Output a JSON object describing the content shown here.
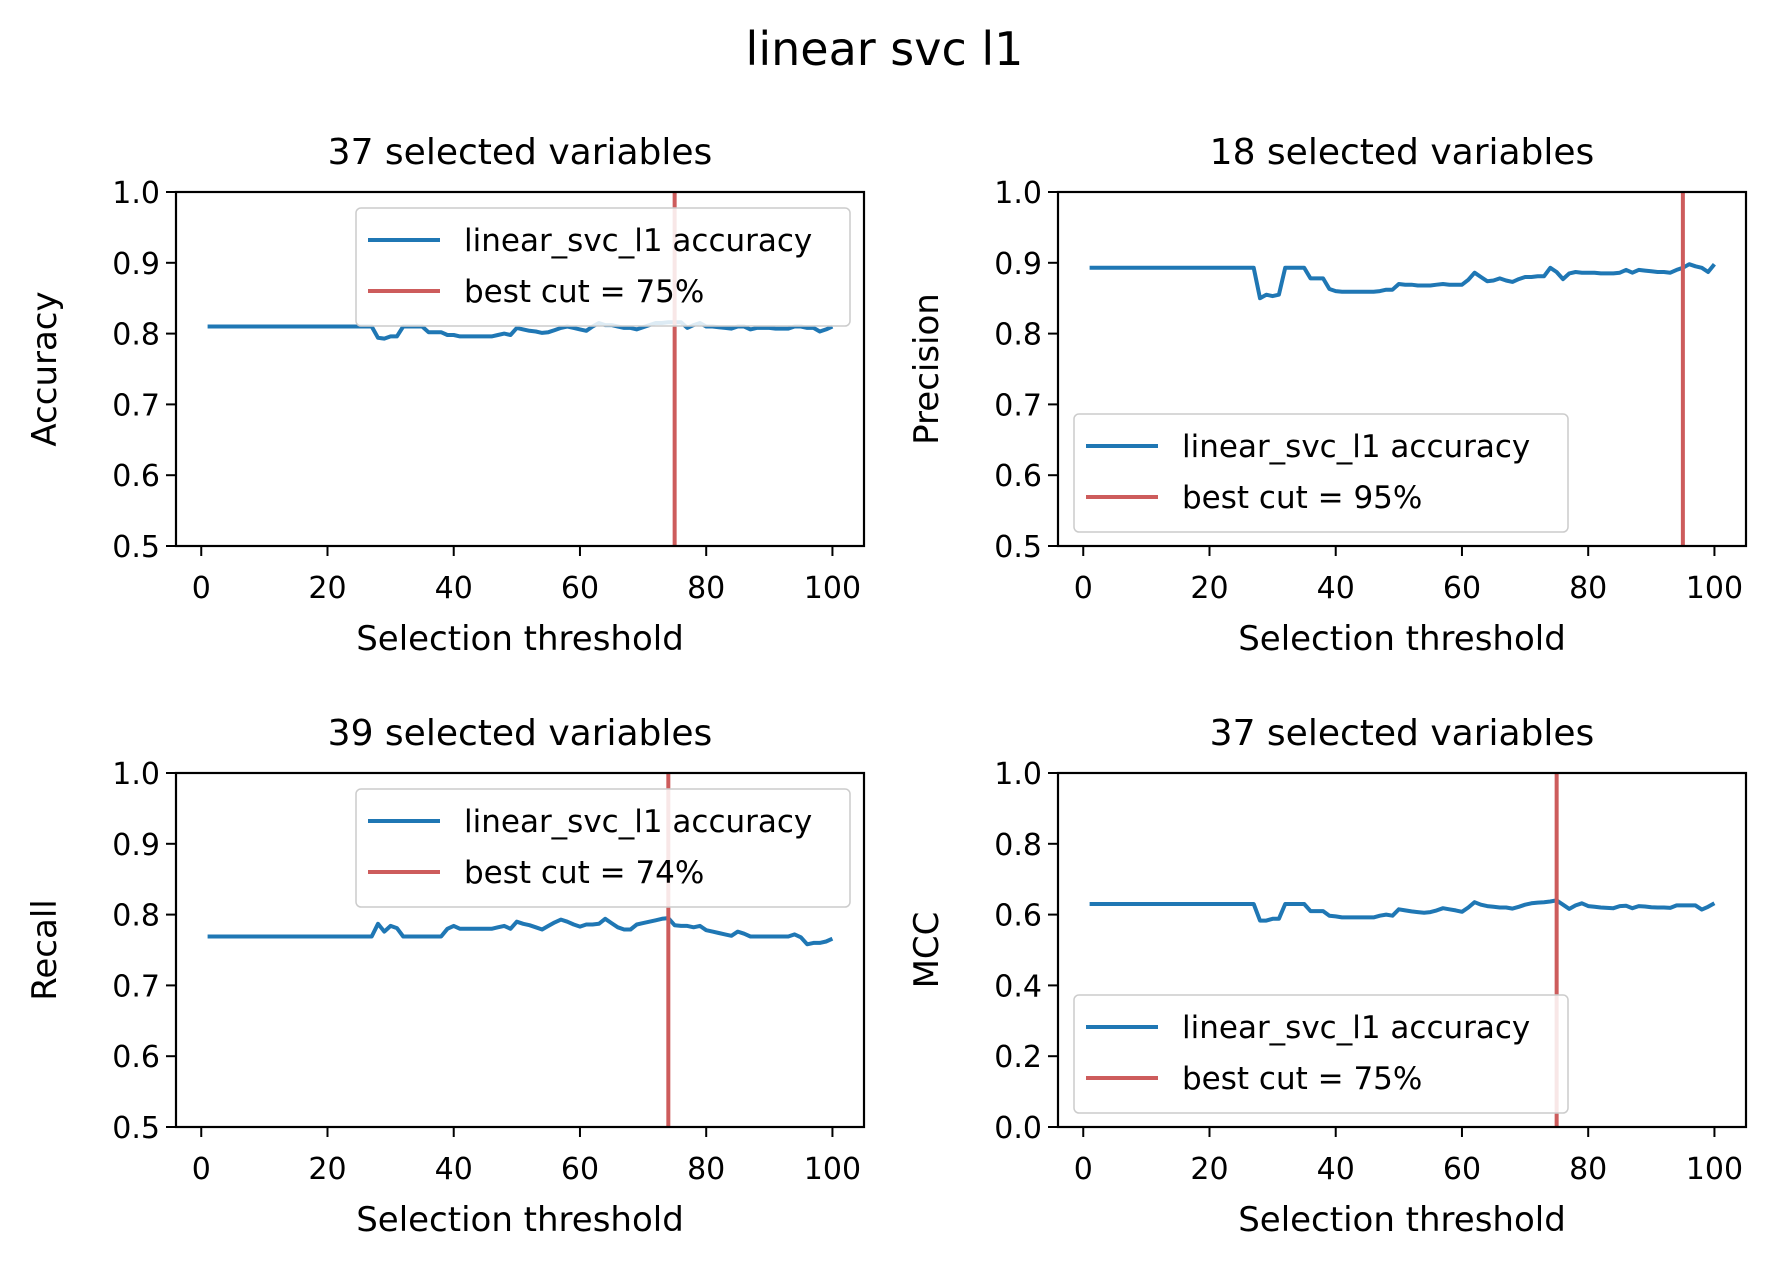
{
  "suptitle": "linear svc l1",
  "colors": {
    "line": "#1f77b4",
    "cut": "#cd5c5c"
  },
  "chart_data": [
    {
      "type": "line",
      "title": "37 selected variables",
      "xlabel": "Selection threshold",
      "ylabel": "Accuracy",
      "xlim": [
        -4,
        105
      ],
      "ylim": [
        0.5,
        1.0
      ],
      "xticks": [
        0,
        20,
        40,
        60,
        80,
        100
      ],
      "yticks": [
        0.5,
        0.6,
        0.7,
        0.8,
        0.9,
        1.0
      ],
      "legend_position": "upper right",
      "series": [
        {
          "name": "linear_svc_l1 accuracy",
          "x": [
            1,
            5,
            10,
            15,
            20,
            25,
            27,
            28,
            29,
            30,
            31,
            32,
            33,
            34,
            35,
            36,
            37,
            38,
            39,
            40,
            41,
            42,
            43,
            44,
            45,
            46,
            47,
            48,
            49,
            50,
            51,
            52,
            53,
            54,
            55,
            56,
            57,
            58,
            59,
            60,
            61,
            62,
            63,
            64,
            65,
            66,
            67,
            68,
            69,
            70,
            71,
            72,
            73,
            74,
            75,
            76,
            77,
            78,
            79,
            80,
            81,
            82,
            83,
            84,
            85,
            86,
            87,
            88,
            89,
            90,
            91,
            92,
            93,
            94,
            95,
            96,
            97,
            98,
            99,
            100
          ],
          "y": [
            0.81,
            0.81,
            0.81,
            0.81,
            0.81,
            0.81,
            0.81,
            0.794,
            0.793,
            0.796,
            0.796,
            0.81,
            0.81,
            0.81,
            0.81,
            0.802,
            0.802,
            0.802,
            0.798,
            0.798,
            0.796,
            0.796,
            0.796,
            0.796,
            0.796,
            0.796,
            0.798,
            0.8,
            0.798,
            0.808,
            0.806,
            0.804,
            0.803,
            0.801,
            0.802,
            0.805,
            0.808,
            0.81,
            0.808,
            0.806,
            0.804,
            0.81,
            0.815,
            0.812,
            0.812,
            0.81,
            0.808,
            0.808,
            0.806,
            0.809,
            0.812,
            0.815,
            0.815,
            0.816,
            0.816,
            0.816,
            0.808,
            0.812,
            0.815,
            0.81,
            0.81,
            0.809,
            0.808,
            0.807,
            0.81,
            0.81,
            0.806,
            0.808,
            0.808,
            0.808,
            0.807,
            0.807,
            0.807,
            0.81,
            0.81,
            0.808,
            0.808,
            0.803,
            0.806,
            0.81
          ]
        }
      ],
      "vline": {
        "x": 75,
        "label": "best cut = 75%"
      }
    },
    {
      "type": "line",
      "title": "18 selected variables",
      "xlabel": "Selection threshold",
      "ylabel": "Precision",
      "xlim": [
        -4,
        105
      ],
      "ylim": [
        0.5,
        1.0
      ],
      "xticks": [
        0,
        20,
        40,
        60,
        80,
        100
      ],
      "yticks": [
        0.5,
        0.6,
        0.7,
        0.8,
        0.9,
        1.0
      ],
      "legend_position": "lower left",
      "series": [
        {
          "name": "linear_svc_l1 accuracy",
          "x": [
            1,
            5,
            10,
            15,
            20,
            25,
            27,
            28,
            29,
            30,
            31,
            32,
            33,
            34,
            35,
            36,
            37,
            38,
            39,
            40,
            41,
            42,
            43,
            44,
            45,
            46,
            47,
            48,
            49,
            50,
            51,
            52,
            53,
            54,
            55,
            56,
            57,
            58,
            59,
            60,
            61,
            62,
            63,
            64,
            65,
            66,
            67,
            68,
            69,
            70,
            71,
            72,
            73,
            74,
            75,
            76,
            77,
            78,
            79,
            80,
            81,
            82,
            83,
            84,
            85,
            86,
            87,
            88,
            89,
            90,
            91,
            92,
            93,
            94,
            95,
            96,
            97,
            98,
            99,
            100
          ],
          "y": [
            0.893,
            0.893,
            0.893,
            0.893,
            0.893,
            0.893,
            0.893,
            0.85,
            0.855,
            0.853,
            0.855,
            0.893,
            0.893,
            0.893,
            0.893,
            0.878,
            0.878,
            0.878,
            0.863,
            0.86,
            0.859,
            0.859,
            0.859,
            0.859,
            0.859,
            0.859,
            0.86,
            0.862,
            0.862,
            0.87,
            0.869,
            0.869,
            0.868,
            0.868,
            0.868,
            0.869,
            0.87,
            0.869,
            0.869,
            0.869,
            0.876,
            0.886,
            0.88,
            0.874,
            0.875,
            0.878,
            0.875,
            0.873,
            0.877,
            0.88,
            0.88,
            0.881,
            0.881,
            0.893,
            0.887,
            0.877,
            0.885,
            0.887,
            0.886,
            0.886,
            0.886,
            0.885,
            0.885,
            0.885,
            0.886,
            0.89,
            0.886,
            0.89,
            0.889,
            0.888,
            0.887,
            0.887,
            0.886,
            0.89,
            0.893,
            0.898,
            0.895,
            0.893,
            0.887,
            0.898
          ]
        }
      ],
      "vline": {
        "x": 95,
        "label": "best cut = 95%"
      }
    },
    {
      "type": "line",
      "title": "39 selected variables",
      "xlabel": "Selection threshold",
      "ylabel": "Recall",
      "xlim": [
        -4,
        105
      ],
      "ylim": [
        0.5,
        1.0
      ],
      "xticks": [
        0,
        20,
        40,
        60,
        80,
        100
      ],
      "yticks": [
        0.5,
        0.6,
        0.7,
        0.8,
        0.9,
        1.0
      ],
      "legend_position": "upper right",
      "series": [
        {
          "name": "linear_svc_l1 accuracy",
          "x": [
            1,
            5,
            10,
            15,
            20,
            25,
            27,
            28,
            29,
            30,
            31,
            32,
            33,
            34,
            35,
            36,
            37,
            38,
            39,
            40,
            41,
            42,
            43,
            44,
            45,
            46,
            47,
            48,
            49,
            50,
            51,
            52,
            53,
            54,
            55,
            56,
            57,
            58,
            59,
            60,
            61,
            62,
            63,
            64,
            65,
            66,
            67,
            68,
            69,
            70,
            71,
            72,
            73,
            74,
            75,
            76,
            77,
            78,
            79,
            80,
            81,
            82,
            83,
            84,
            85,
            86,
            87,
            88,
            89,
            90,
            91,
            92,
            93,
            94,
            95,
            96,
            97,
            98,
            99,
            100
          ],
          "y": [
            0.769,
            0.769,
            0.769,
            0.769,
            0.769,
            0.769,
            0.769,
            0.787,
            0.776,
            0.784,
            0.781,
            0.769,
            0.769,
            0.769,
            0.769,
            0.769,
            0.769,
            0.769,
            0.78,
            0.784,
            0.78,
            0.78,
            0.78,
            0.78,
            0.78,
            0.78,
            0.782,
            0.784,
            0.78,
            0.79,
            0.787,
            0.785,
            0.782,
            0.779,
            0.784,
            0.789,
            0.793,
            0.79,
            0.786,
            0.783,
            0.786,
            0.786,
            0.787,
            0.794,
            0.788,
            0.782,
            0.779,
            0.779,
            0.786,
            0.788,
            0.79,
            0.792,
            0.794,
            0.795,
            0.785,
            0.784,
            0.784,
            0.782,
            0.784,
            0.778,
            0.776,
            0.774,
            0.772,
            0.77,
            0.776,
            0.773,
            0.769,
            0.769,
            0.769,
            0.769,
            0.769,
            0.769,
            0.769,
            0.772,
            0.768,
            0.758,
            0.76,
            0.76,
            0.762,
            0.766
          ]
        }
      ],
      "vline": {
        "x": 74,
        "label": "best cut = 74%"
      }
    },
    {
      "type": "line",
      "title": "37 selected variables",
      "xlabel": "Selection threshold",
      "ylabel": "MCC",
      "xlim": [
        -4,
        105
      ],
      "ylim": [
        0.0,
        1.0
      ],
      "xticks": [
        0,
        20,
        40,
        60,
        80,
        100
      ],
      "yticks": [
        0.0,
        0.2,
        0.4,
        0.6,
        0.8,
        1.0
      ],
      "legend_position": "lower left",
      "series": [
        {
          "name": "linear_svc_l1 accuracy",
          "x": [
            1,
            5,
            10,
            15,
            20,
            25,
            27,
            28,
            29,
            30,
            31,
            32,
            33,
            34,
            35,
            36,
            37,
            38,
            39,
            40,
            41,
            42,
            43,
            44,
            45,
            46,
            47,
            48,
            49,
            50,
            51,
            52,
            53,
            54,
            55,
            56,
            57,
            58,
            59,
            60,
            61,
            62,
            63,
            64,
            65,
            66,
            67,
            68,
            69,
            70,
            71,
            72,
            73,
            74,
            75,
            76,
            77,
            78,
            79,
            80,
            81,
            82,
            83,
            84,
            85,
            86,
            87,
            88,
            89,
            90,
            91,
            92,
            93,
            94,
            95,
            96,
            97,
            98,
            99,
            100
          ],
          "y": [
            0.63,
            0.63,
            0.63,
            0.63,
            0.63,
            0.63,
            0.63,
            0.583,
            0.583,
            0.588,
            0.588,
            0.63,
            0.63,
            0.63,
            0.63,
            0.61,
            0.61,
            0.61,
            0.597,
            0.595,
            0.592,
            0.592,
            0.592,
            0.592,
            0.592,
            0.592,
            0.597,
            0.6,
            0.597,
            0.615,
            0.612,
            0.609,
            0.607,
            0.605,
            0.607,
            0.612,
            0.618,
            0.615,
            0.612,
            0.608,
            0.62,
            0.635,
            0.628,
            0.624,
            0.622,
            0.62,
            0.62,
            0.617,
            0.622,
            0.628,
            0.632,
            0.634,
            0.635,
            0.637,
            0.64,
            0.628,
            0.616,
            0.626,
            0.632,
            0.624,
            0.622,
            0.62,
            0.619,
            0.618,
            0.624,
            0.625,
            0.618,
            0.624,
            0.623,
            0.621,
            0.62,
            0.62,
            0.619,
            0.626,
            0.626,
            0.626,
            0.626,
            0.614,
            0.622,
            0.632
          ]
        }
      ],
      "vline": {
        "x": 75,
        "label": "best cut = 75%"
      }
    }
  ]
}
